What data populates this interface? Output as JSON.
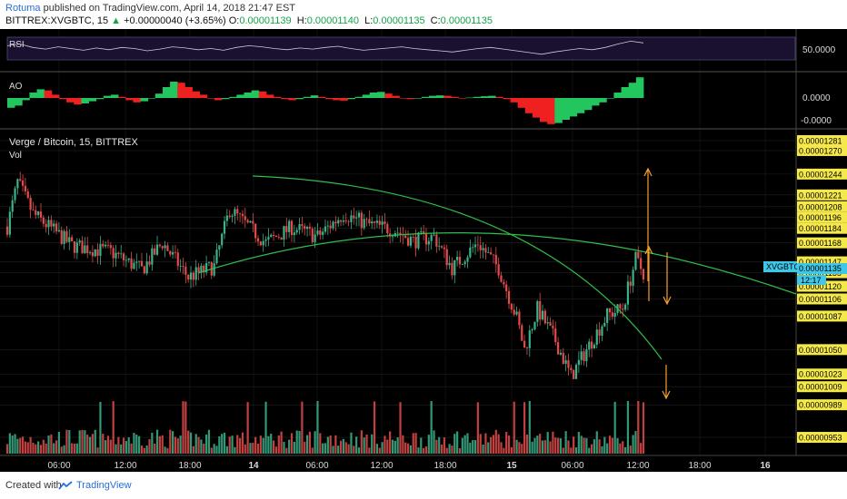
{
  "header": {
    "author": "Rotuma",
    "published": "published on TradingView.com, April 14, 2018 21:47 EST",
    "symbol_line": "BITTREX:XVGBTC, 15",
    "change": "+0.00000040 (+3.65%)",
    "o_label": "O:",
    "o_value": "0.00001139",
    "h_label": "H:",
    "h_value": "0.00001140",
    "l_label": "L:",
    "l_value": "0.00001135",
    "c_label": "C:",
    "c_value": "0.00001135",
    "last_price": "0.00001135",
    "up_arrow": "▲"
  },
  "footer": {
    "created": "Created with",
    "brand": "TradingView"
  },
  "colors": {
    "up": "#3bb38a",
    "down": "#e34b4b",
    "ao_up": "#22c55e",
    "ao_down": "#ef2020",
    "trend": "#2fbf4a",
    "arrow": "#f59e2b",
    "rsi": "#c9ccd6",
    "axis_text": "#d9d9d9"
  },
  "chart_data": {
    "type": "candlestick",
    "symbol": "XVGBTC",
    "title": "Verge / Bitcoin, 15, BITTREX",
    "volume_label": "Vol",
    "countdown": "12:17",
    "x_ticks": [
      "06:00",
      "12:00",
      "18:00",
      "14",
      "06:00",
      "12:00",
      "18:00",
      "15",
      "06:00",
      "12:00",
      "18:00",
      "16"
    ],
    "price_levels": [
      "0.00001281",
      "0.00001270",
      "0.00001244",
      "0.00001221",
      "0.00001208",
      "0.00001196",
      "0.00001184",
      "0.00001168",
      "0.00001147",
      "0.00001135",
      "0.00001120",
      "0.00001106",
      "0.00001087",
      "0.00001050",
      "0.00001023",
      "0.00001009",
      "0.00000989",
      "0.00000953"
    ],
    "y_range": [
      9.35e-06,
      1.29e-05
    ],
    "key_points": [
      {
        "t": 0,
        "p": 1.186e-05
      },
      {
        "t": 4,
        "p": 1.235e-05
      },
      {
        "t": 10,
        "p": 1.2e-05
      },
      {
        "t": 25,
        "p": 1.165e-05
      },
      {
        "t": 40,
        "p": 1.158e-05
      },
      {
        "t": 52,
        "p": 1.138e-05
      },
      {
        "t": 60,
        "p": 1.168e-05
      },
      {
        "t": 70,
        "p": 1.13e-05
      },
      {
        "t": 80,
        "p": 1.142e-05
      },
      {
        "t": 86,
        "p": 1.205e-05
      },
      {
        "t": 100,
        "p": 1.168e-05
      },
      {
        "t": 110,
        "p": 1.185e-05
      },
      {
        "t": 120,
        "p": 1.175e-05
      },
      {
        "t": 130,
        "p": 1.2e-05
      },
      {
        "t": 140,
        "p": 1.188e-05
      },
      {
        "t": 150,
        "p": 1.182e-05
      },
      {
        "t": 157,
        "p": 1.17e-05
      },
      {
        "t": 165,
        "p": 1.175e-05
      },
      {
        "t": 172,
        "p": 1.14e-05
      },
      {
        "t": 182,
        "p": 1.168e-05
      },
      {
        "t": 190,
        "p": 1.14e-05
      },
      {
        "t": 197,
        "p": 1.085e-05
      },
      {
        "t": 200,
        "p": 1.05e-05
      },
      {
        "t": 205,
        "p": 1.095e-05
      },
      {
        "t": 212,
        "p": 1.06e-05
      },
      {
        "t": 218,
        "p": 1.02e-05
      },
      {
        "t": 224,
        "p": 1.05e-05
      },
      {
        "t": 232,
        "p": 1.088e-05
      },
      {
        "t": 238,
        "p": 1.096e-05
      },
      {
        "t": 243,
        "p": 1.15e-05
      },
      {
        "t": 246,
        "p": 1.135e-05
      }
    ],
    "rsi": {
      "name": "RSI",
      "label": "50.0000",
      "range": [
        0,
        100
      ],
      "values": [
        55,
        58,
        52,
        49,
        53,
        50,
        47,
        51,
        48,
        52,
        50,
        46,
        49,
        53,
        51,
        48,
        50,
        47,
        52,
        55,
        53,
        50,
        48,
        51,
        49,
        52,
        54,
        50,
        47,
        49,
        51,
        53,
        50,
        48,
        46,
        44,
        47,
        50,
        52,
        49,
        46,
        43,
        40,
        44,
        47,
        50,
        48,
        52,
        58,
        63,
        60
      ]
    },
    "ao": {
      "name": "AO",
      "levels": [
        "0.0000",
        "-0.0000"
      ],
      "values": [
        -0.45,
        -0.35,
        -0.1,
        0.25,
        0.4,
        0.35,
        0.15,
        -0.05,
        -0.2,
        -0.3,
        -0.25,
        -0.15,
        -0.05,
        0.1,
        0.15,
        0.05,
        -0.1,
        -0.2,
        -0.15,
        0.0,
        0.2,
        0.5,
        0.75,
        0.7,
        0.5,
        0.3,
        0.15,
        0.0,
        -0.1,
        -0.05,
        0.05,
        0.15,
        0.25,
        0.35,
        0.3,
        0.15,
        0.05,
        -0.05,
        -0.1,
        -0.05,
        0.05,
        0.12,
        0.05,
        -0.05,
        -0.1,
        -0.12,
        -0.05,
        0.05,
        0.15,
        0.25,
        0.28,
        0.2,
        0.1,
        0.0,
        -0.05,
        0.0,
        0.05,
        0.1,
        0.12,
        0.1,
        0.05,
        0.0,
        0.02,
        0.05,
        0.08,
        0.1,
        0.05,
        -0.05,
        -0.2,
        -0.45,
        -0.7,
        -0.9,
        -1.1,
        -1.2,
        -1.15,
        -1.0,
        -0.85,
        -0.7,
        -0.55,
        -0.35,
        -0.2,
        0.0,
        0.25,
        0.5,
        0.7,
        0.95
      ]
    }
  }
}
